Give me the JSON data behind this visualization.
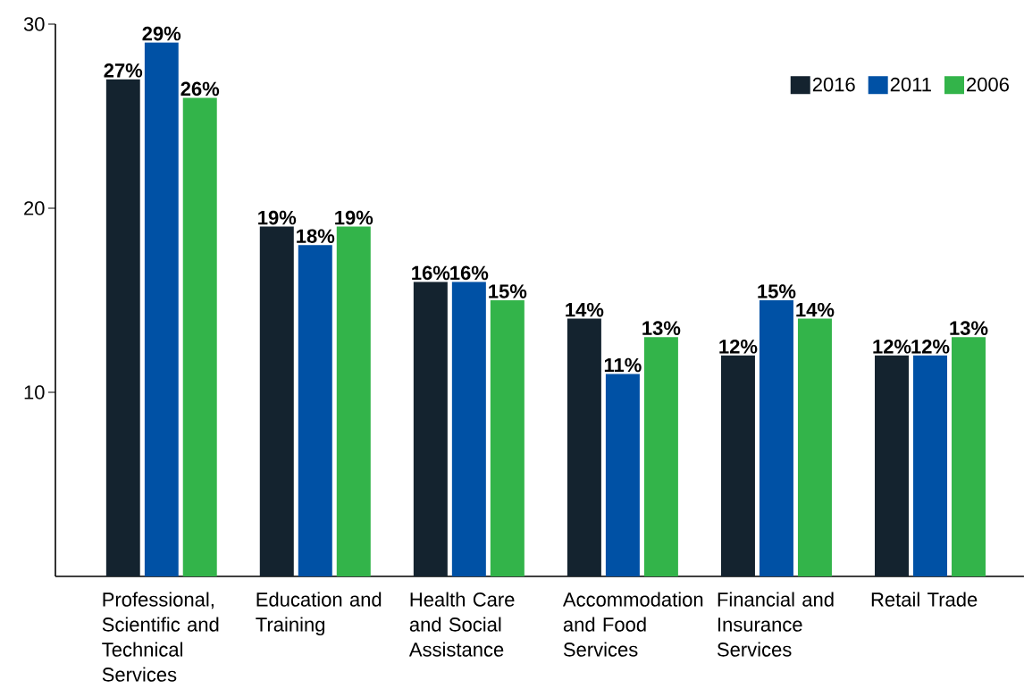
{
  "chart_data": {
    "type": "bar",
    "categories": [
      "Professional, Scientific and Technical Services",
      "Education and Training",
      "Health Care and Social Assistance",
      "Accommodation and Food Services",
      "Financial and Insurance Services",
      "Retail Trade"
    ],
    "series": [
      {
        "name": "2016",
        "color": "#14232f",
        "values": [
          27,
          19,
          16,
          14,
          12,
          12
        ],
        "value_labels": [
          "27%",
          "19%",
          "16%",
          "14%",
          "12%",
          "12%"
        ]
      },
      {
        "name": "2011",
        "color": "#0051a5",
        "values": [
          29,
          18,
          16,
          11,
          15,
          12
        ],
        "value_labels": [
          "29%",
          "18%",
          "16%",
          "11%",
          "15%",
          "12%"
        ]
      },
      {
        "name": "2006",
        "color": "#33b44a",
        "values": [
          26,
          19,
          15,
          13,
          14,
          13
        ],
        "value_labels": [
          "26%",
          "19%",
          "15%",
          "13%",
          "14%",
          "13%"
        ]
      }
    ],
    "ylim": [
      0,
      30
    ],
    "yticks": [
      10,
      20,
      30
    ],
    "grid": false,
    "legend": "top right"
  }
}
